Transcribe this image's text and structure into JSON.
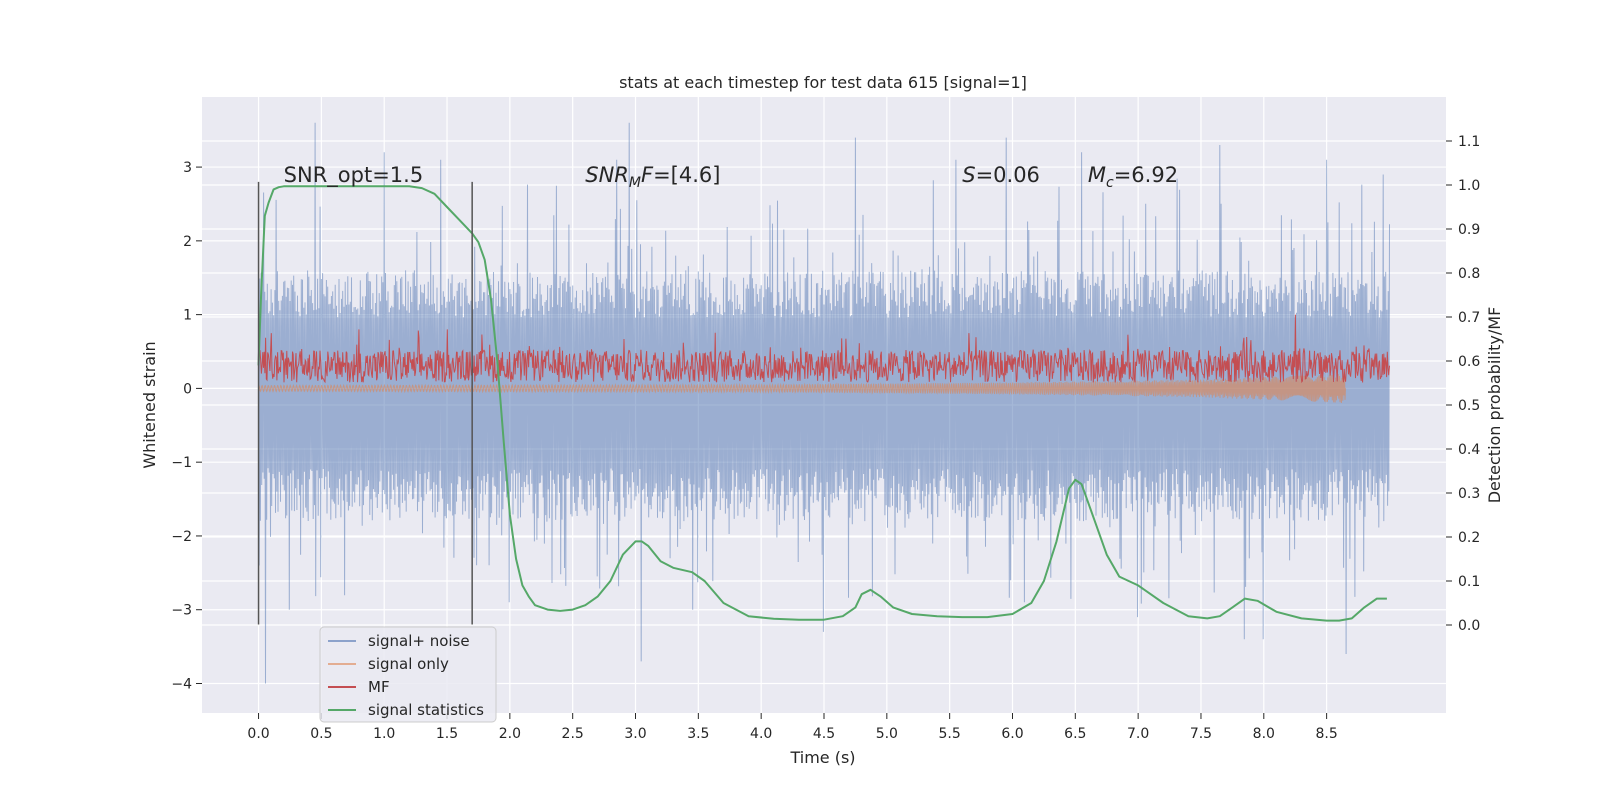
{
  "chart_data": {
    "type": "line",
    "title": "stats at each timestep for test data 615 [signal=1]",
    "xlabel": "Time (s)",
    "ylabel_left": "Whitened strain",
    "ylabel_right": "Detection probability/MF",
    "xlim": [
      -0.45,
      9.45
    ],
    "ylim_left": [
      -4.4,
      3.95
    ],
    "ylim_right": [
      -0.2,
      1.2
    ],
    "x_ticks": [
      0.0,
      0.5,
      1.0,
      1.5,
      2.0,
      2.5,
      3.0,
      3.5,
      4.0,
      4.5,
      5.0,
      5.5,
      6.0,
      6.5,
      7.0,
      7.5,
      8.0,
      8.5
    ],
    "x_tick_labels": [
      "0.0",
      "0.5",
      "1.0",
      "1.5",
      "2.0",
      "2.5",
      "3.0",
      "3.5",
      "4.0",
      "4.5",
      "5.0",
      "5.5",
      "6.0",
      "6.5",
      "7.0",
      "7.5",
      "8.0",
      "8.5"
    ],
    "y_left_ticks": [
      -4,
      -3,
      -2,
      -1,
      0,
      1,
      2,
      3
    ],
    "y_left_tick_labels": [
      "−4",
      "−3",
      "−2",
      "−1",
      "0",
      "1",
      "2",
      "3"
    ],
    "y_right_ticks": [
      0.0,
      0.1,
      0.2,
      0.3,
      0.4,
      0.5,
      0.6,
      0.7,
      0.8,
      0.9,
      1.0,
      1.1
    ],
    "y_right_tick_labels": [
      "0.0",
      "0.1",
      "0.2",
      "0.3",
      "0.4",
      "0.5",
      "0.6",
      "0.7",
      "0.8",
      "0.9",
      "1.0",
      "1.1"
    ],
    "grid": true,
    "background": "#eaeaf2",
    "annotations": [
      {
        "x": 0.2,
        "y": 2.8,
        "parts": [
          {
            "t": "SNR_opt=1.5",
            "style": "normal"
          }
        ]
      },
      {
        "x": 2.6,
        "y": 2.8,
        "parts": [
          {
            "t": "SNR",
            "style": "italic"
          },
          {
            "t": "M",
            "style": "italic-sub"
          },
          {
            "t": "F",
            "style": "italic"
          },
          {
            "t": "=[4.6]",
            "style": "normal"
          }
        ]
      },
      {
        "x": 5.6,
        "y": 2.8,
        "parts": [
          {
            "t": "S",
            "style": "italic"
          },
          {
            "t": "=0.06",
            "style": "normal"
          }
        ]
      },
      {
        "x": 6.6,
        "y": 2.8,
        "parts": [
          {
            "t": "M",
            "style": "italic"
          },
          {
            "t": "c",
            "style": "italic-sub"
          },
          {
            "t": "=6.92",
            "style": "normal"
          }
        ]
      }
    ],
    "vlines": [
      {
        "x": 0.0,
        "y0": -3.2,
        "y1": 2.8
      },
      {
        "x": 1.7,
        "y0": -3.2,
        "y1": 2.8
      }
    ],
    "series": [
      {
        "name": "signal+ noise",
        "color": "#4c72b0",
        "alpha": 0.5,
        "axis": "left",
        "kind": "noise-band",
        "x_range": [
          0.0,
          9.0
        ],
        "band_upper": 1.6,
        "band_lower": -1.8,
        "peaks": [
          {
            "x": 0.0,
            "y": -2.4
          },
          {
            "x": 0.05,
            "y": -4.0
          },
          {
            "x": 0.45,
            "y": 3.6
          },
          {
            "x": 0.25,
            "y": -3.0
          },
          {
            "x": 1.0,
            "y": 3.2
          },
          {
            "x": 1.45,
            "y": 3.1
          },
          {
            "x": 2.0,
            "y": -2.9
          },
          {
            "x": 2.85,
            "y": 3.1
          },
          {
            "x": 2.95,
            "y": 3.6
          },
          {
            "x": 3.05,
            "y": -3.7
          },
          {
            "x": 3.45,
            "y": -3.0
          },
          {
            "x": 4.5,
            "y": -3.3
          },
          {
            "x": 4.75,
            "y": 3.4
          },
          {
            "x": 5.55,
            "y": 3.1
          },
          {
            "x": 5.95,
            "y": 3.4
          },
          {
            "x": 6.1,
            "y": -2.9
          },
          {
            "x": 6.55,
            "y": 3.2
          },
          {
            "x": 7.0,
            "y": -3.1
          },
          {
            "x": 7.65,
            "y": 3.3
          },
          {
            "x": 7.85,
            "y": -3.4
          },
          {
            "x": 8.0,
            "y": -3.4
          },
          {
            "x": 8.5,
            "y": 3.1
          },
          {
            "x": 8.65,
            "y": -3.6
          },
          {
            "x": 8.95,
            "y": 2.9
          }
        ]
      },
      {
        "name": "signal only",
        "color": "#dd8452",
        "alpha": 0.5,
        "axis": "left",
        "kind": "chirp",
        "x_range": [
          0.0,
          8.65
        ],
        "envelope": [
          [
            0.0,
            0.04
          ],
          [
            4.0,
            0.05
          ],
          [
            6.0,
            0.08
          ],
          [
            7.5,
            0.12
          ],
          [
            8.4,
            0.18
          ],
          [
            8.63,
            0.2
          ]
        ]
      },
      {
        "name": "MF",
        "color": "#c44e52",
        "alpha": 1.0,
        "axis": "left",
        "kind": "noisy-positive",
        "x_range": [
          0.0,
          9.0
        ],
        "base": 0.3,
        "spread": 0.22,
        "peaks": [
          {
            "x": 0.1,
            "y": 0.75
          },
          {
            "x": 0.8,
            "y": 0.8
          },
          {
            "x": 1.5,
            "y": 0.8
          },
          {
            "x": 8.25,
            "y": 1.0
          }
        ]
      },
      {
        "name": "signal statistics",
        "color": "#55a868",
        "alpha": 1.0,
        "axis": "right",
        "kind": "line",
        "x": [
          0.0,
          0.02,
          0.05,
          0.08,
          0.12,
          0.16,
          0.2,
          0.3,
          0.5,
          0.8,
          1.0,
          1.2,
          1.3,
          1.4,
          1.5,
          1.6,
          1.7,
          1.75,
          1.8,
          1.85,
          1.9,
          1.95,
          2.0,
          2.05,
          2.1,
          2.15,
          2.2,
          2.3,
          2.4,
          2.5,
          2.6,
          2.7,
          2.8,
          2.9,
          3.0,
          3.05,
          3.1,
          3.2,
          3.3,
          3.45,
          3.55,
          3.7,
          3.9,
          4.1,
          4.3,
          4.5,
          4.65,
          4.75,
          4.8,
          4.87,
          4.95,
          5.05,
          5.2,
          5.4,
          5.6,
          5.8,
          6.0,
          6.15,
          6.25,
          6.35,
          6.45,
          6.5,
          6.55,
          6.65,
          6.75,
          6.85,
          7.0,
          7.2,
          7.4,
          7.55,
          7.65,
          7.75,
          7.85,
          7.95,
          8.1,
          8.3,
          8.5,
          8.6,
          8.7,
          8.8,
          8.9,
          8.98
        ],
        "y": [
          0.59,
          0.75,
          0.93,
          0.96,
          0.99,
          0.995,
          0.997,
          0.997,
          0.997,
          0.997,
          0.997,
          0.997,
          0.993,
          0.98,
          0.95,
          0.92,
          0.89,
          0.87,
          0.83,
          0.74,
          0.6,
          0.42,
          0.25,
          0.15,
          0.09,
          0.065,
          0.045,
          0.035,
          0.032,
          0.035,
          0.045,
          0.065,
          0.1,
          0.16,
          0.19,
          0.19,
          0.18,
          0.145,
          0.13,
          0.12,
          0.1,
          0.05,
          0.02,
          0.014,
          0.012,
          0.012,
          0.02,
          0.04,
          0.07,
          0.08,
          0.065,
          0.04,
          0.025,
          0.02,
          0.018,
          0.018,
          0.025,
          0.05,
          0.1,
          0.19,
          0.31,
          0.33,
          0.32,
          0.24,
          0.16,
          0.11,
          0.09,
          0.05,
          0.02,
          0.015,
          0.02,
          0.04,
          0.06,
          0.055,
          0.03,
          0.015,
          0.01,
          0.01,
          0.015,
          0.04,
          0.06,
          0.06
        ]
      }
    ],
    "legend": {
      "placement": "lower-left"
    }
  }
}
